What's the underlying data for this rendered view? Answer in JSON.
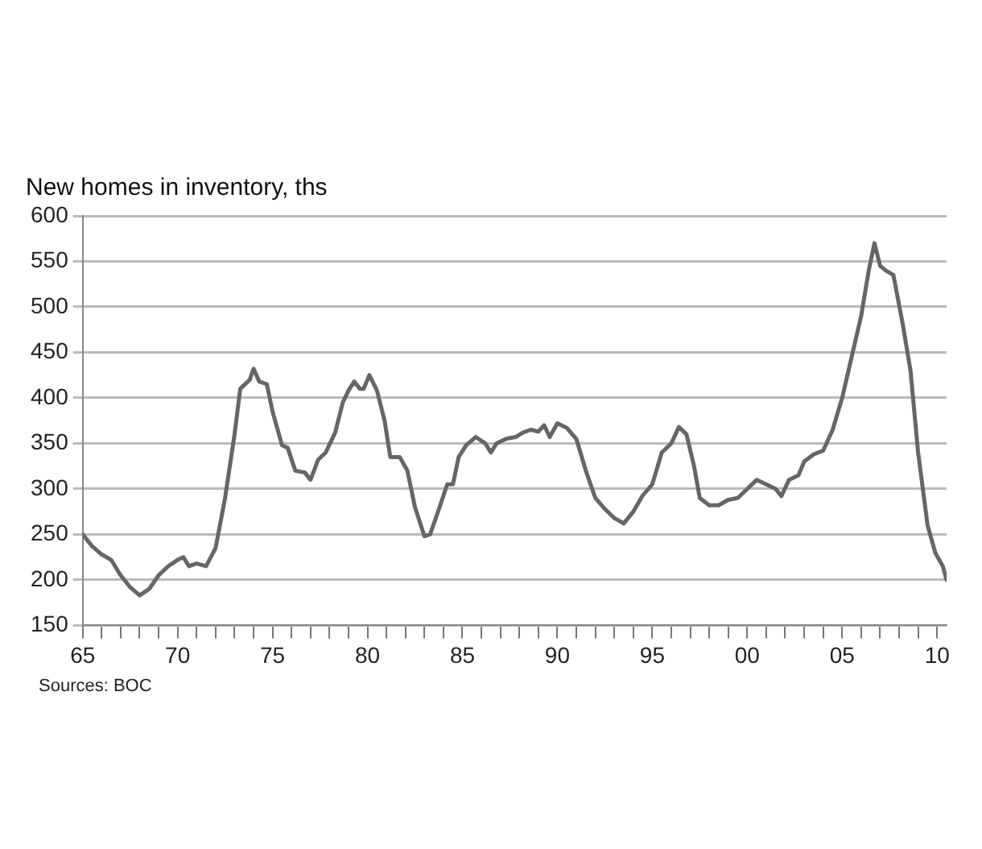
{
  "chart_data": {
    "type": "line",
    "title": "New homes in inventory, ths",
    "annotations": [
      "Sources: BOC"
    ],
    "x": [
      1965,
      1965.5,
      1966,
      1966.5,
      1967,
      1967.5,
      1968,
      1968.5,
      1969,
      1969.5,
      1970,
      1970.3,
      1970.6,
      1971,
      1971.5,
      1972,
      1972.5,
      1973,
      1973.3,
      1973.8,
      1974,
      1974.3,
      1974.7,
      1975,
      1975.5,
      1975.8,
      1976.2,
      1976.7,
      1977,
      1977.4,
      1977.8,
      1978.3,
      1978.7,
      1979,
      1979.3,
      1979.6,
      1979.8,
      1980.1,
      1980.5,
      1980.9,
      1981.2,
      1981.7,
      1982.1,
      1982.5,
      1983,
      1983.3,
      1983.8,
      1984.2,
      1984.5,
      1984.8,
      1985.2,
      1985.7,
      1986.2,
      1986.5,
      1986.8,
      1987.3,
      1987.8,
      1988.2,
      1988.6,
      1989,
      1989.3,
      1989.6,
      1990,
      1990.5,
      1991,
      1991.5,
      1992,
      1992.5,
      1993,
      1993.5,
      1994,
      1994.5,
      1995,
      1995.5,
      1996,
      1996.4,
      1996.8,
      1997.2,
      1997.5,
      1998,
      1998.5,
      1999,
      1999.5,
      2000,
      2000.5,
      2001,
      2001.5,
      2001.8,
      2002.2,
      2002.7,
      2003,
      2003.5,
      2004,
      2004.5,
      2005,
      2005.5,
      2006,
      2006.4,
      2006.7,
      2007,
      2007.3,
      2007.7,
      2008.2,
      2008.6,
      2009,
      2009.5,
      2009.9,
      2010.3,
      2010.5
    ],
    "series": [
      {
        "color": "#666666",
        "values": [
          250,
          237,
          228,
          222,
          205,
          192,
          183,
          190,
          205,
          215,
          222,
          225,
          215,
          218,
          215,
          235,
          290,
          360,
          410,
          420,
          432,
          418,
          415,
          385,
          348,
          345,
          320,
          318,
          310,
          332,
          340,
          362,
          395,
          408,
          418,
          410,
          410,
          425,
          408,
          375,
          335,
          335,
          320,
          280,
          248,
          250,
          280,
          305,
          305,
          335,
          348,
          357,
          350,
          340,
          350,
          355,
          357,
          362,
          365,
          363,
          370,
          357,
          372,
          367,
          355,
          320,
          290,
          278,
          268,
          262,
          275,
          293,
          305,
          340,
          350,
          368,
          360,
          325,
          290,
          282,
          282,
          288,
          290,
          300,
          310,
          305,
          300,
          292,
          310,
          315,
          330,
          338,
          342,
          365,
          400,
          445,
          490,
          540,
          570,
          545,
          540,
          535,
          480,
          430,
          340,
          260,
          230,
          215,
          200
        ]
      }
    ],
    "xlim": [
      1965,
      2010.5
    ],
    "xticks": [
      {
        "value": 1965,
        "label": "65"
      },
      {
        "value": 1966,
        "label": null
      },
      {
        "value": 1967,
        "label": null
      },
      {
        "value": 1968,
        "label": null
      },
      {
        "value": 1969,
        "label": null
      },
      {
        "value": 1970,
        "label": "70"
      },
      {
        "value": 1971,
        "label": null
      },
      {
        "value": 1972,
        "label": null
      },
      {
        "value": 1973,
        "label": null
      },
      {
        "value": 1974,
        "label": null
      },
      {
        "value": 1975,
        "label": "75"
      },
      {
        "value": 1976,
        "label": null
      },
      {
        "value": 1977,
        "label": null
      },
      {
        "value": 1978,
        "label": null
      },
      {
        "value": 1979,
        "label": null
      },
      {
        "value": 1980,
        "label": "80"
      },
      {
        "value": 1981,
        "label": null
      },
      {
        "value": 1982,
        "label": null
      },
      {
        "value": 1983,
        "label": null
      },
      {
        "value": 1984,
        "label": null
      },
      {
        "value": 1985,
        "label": "85"
      },
      {
        "value": 1986,
        "label": null
      },
      {
        "value": 1987,
        "label": null
      },
      {
        "value": 1988,
        "label": null
      },
      {
        "value": 1989,
        "label": null
      },
      {
        "value": 1990,
        "label": "90"
      },
      {
        "value": 1991,
        "label": null
      },
      {
        "value": 1992,
        "label": null
      },
      {
        "value": 1993,
        "label": null
      },
      {
        "value": 1994,
        "label": null
      },
      {
        "value": 1995,
        "label": "95"
      },
      {
        "value": 1996,
        "label": null
      },
      {
        "value": 1997,
        "label": null
      },
      {
        "value": 1998,
        "label": null
      },
      {
        "value": 1999,
        "label": null
      },
      {
        "value": 2000,
        "label": "00"
      },
      {
        "value": 2001,
        "label": null
      },
      {
        "value": 2002,
        "label": null
      },
      {
        "value": 2003,
        "label": null
      },
      {
        "value": 2004,
        "label": null
      },
      {
        "value": 2005,
        "label": "05"
      },
      {
        "value": 2006,
        "label": null
      },
      {
        "value": 2007,
        "label": null
      },
      {
        "value": 2008,
        "label": null
      },
      {
        "value": 2009,
        "label": null
      },
      {
        "value": 2010,
        "label": "10"
      }
    ],
    "ylim": [
      150,
      600
    ],
    "yticks": [
      150,
      200,
      250,
      300,
      350,
      400,
      450,
      500,
      550,
      600
    ],
    "grid": "y",
    "marker": "none",
    "line_style": "solid"
  }
}
